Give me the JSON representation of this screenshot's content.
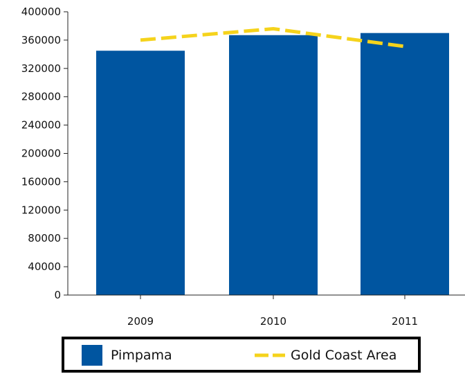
{
  "chart_data": {
    "type": "bar",
    "categories": [
      "2009",
      "2010",
      "2011"
    ],
    "series": [
      {
        "name": "Pimpama",
        "kind": "bar",
        "color": "#0055a0",
        "values": [
          345000,
          367000,
          370000
        ]
      },
      {
        "name": "Gold Coast Area",
        "kind": "line",
        "style": "dashed",
        "color": "#f5d31c",
        "values": [
          360000,
          376000,
          351000
        ]
      }
    ],
    "ylim": [
      0,
      400000
    ],
    "yticks": [
      "0",
      "40000",
      "80000",
      "120000",
      "160000",
      "200000",
      "240000",
      "280000",
      "320000",
      "360000",
      "400000"
    ],
    "grid": false,
    "legend_position": "bottom"
  }
}
